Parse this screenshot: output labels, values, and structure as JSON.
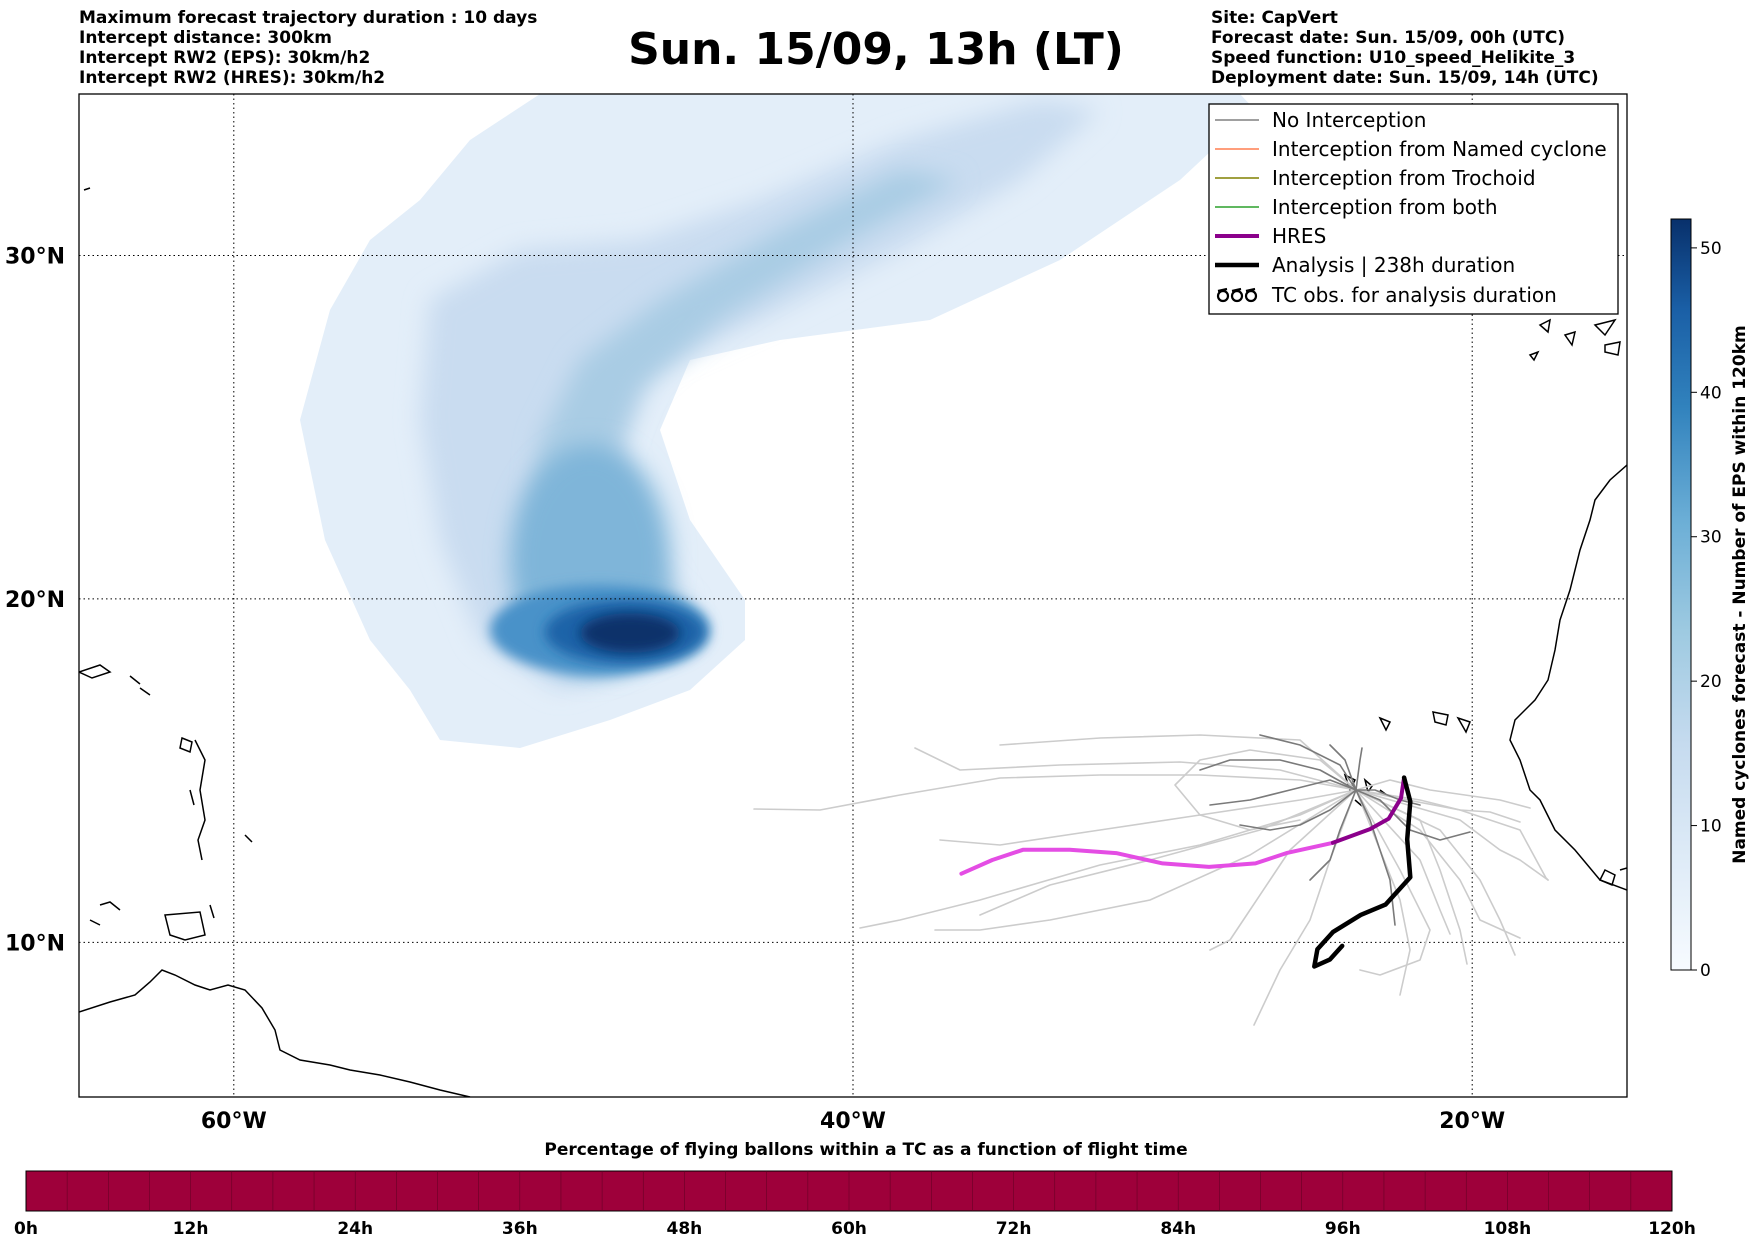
{
  "title": "Sun. 15/09, 13h (LT)",
  "info_left": [
    "Maximum forecast trajectory duration : 10 days",
    "Intercept distance: 300km",
    "Intercept RW2 (EPS):  30km/h2",
    "Intercept RW2 (HRES): 30km/h2"
  ],
  "info_right": [
    "Site: CapVert",
    "Forecast date: Sun. 15/09, 00h (UTC)",
    "Speed function: U10_speed_Helikite_3",
    "Deployment date: Sun. 15/09, 14h (UTC)"
  ],
  "map": {
    "lon_range": [
      -65,
      -15
    ],
    "lat_range": [
      5.5,
      34.7
    ],
    "lon_ticks": [
      {
        "value": -60,
        "label": "60°W"
      },
      {
        "value": -40,
        "label": "40°W"
      },
      {
        "value": -20,
        "label": "20°W"
      }
    ],
    "lat_ticks": [
      {
        "value": 10,
        "label": "10°N"
      },
      {
        "value": 20,
        "label": "20°N"
      },
      {
        "value": 30,
        "label": "30°N"
      }
    ],
    "grid": "dotted"
  },
  "legend": {
    "placement": "top-right",
    "entries": [
      {
        "label": "No Interception",
        "color": "#808080",
        "style": "thin"
      },
      {
        "label": "Interception from Named cyclone",
        "color": "#ff7f50",
        "style": "thin"
      },
      {
        "label": "Interception from Trochoid",
        "color": "#808000",
        "style": "thin"
      },
      {
        "label": "Interception from both",
        "color": "#2ca02c",
        "style": "thin"
      },
      {
        "label": "HRES",
        "color": "#8b008b",
        "style": "thick"
      },
      {
        "label": "Analysis | 238h duration",
        "color": "#000000",
        "style": "thick"
      },
      {
        "label": "TC obs. for analysis duration",
        "color": "#000000",
        "style": "tc-symbol"
      }
    ]
  },
  "colorbar": {
    "label": "Named cyclones forecast - Number of EPS within 120km",
    "min": 0,
    "max": 52,
    "ticks": [
      "0",
      "10",
      "20",
      "30",
      "40",
      "50"
    ],
    "colormap": "Blues"
  },
  "chart_data": {
    "type": "heatmap",
    "title": "Sun. 15/09, 13h (LT)",
    "density_cores": [
      {
        "lon": -46.5,
        "lat": 19.5,
        "value": 52
      },
      {
        "lon": -48.5,
        "lat": 22.0,
        "value": 30
      },
      {
        "lon": -43.0,
        "lat": 28.0,
        "value": 15
      },
      {
        "lon": -38.0,
        "lat": 32.0,
        "value": 10
      }
    ],
    "trajectories": {
      "hres": [
        [
          -36.5,
          12.0
        ],
        [
          -35.5,
          12.4
        ],
        [
          -34.5,
          12.7
        ],
        [
          -33.0,
          12.7
        ],
        [
          -31.5,
          12.6
        ],
        [
          -30.0,
          12.3
        ],
        [
          -28.5,
          12.2
        ],
        [
          -27.0,
          12.3
        ],
        [
          -26.0,
          12.6
        ],
        [
          -24.5,
          12.9
        ],
        [
          -23.3,
          13.3
        ],
        [
          -22.7,
          13.6
        ],
        [
          -22.3,
          14.2
        ],
        [
          -22.2,
          14.8
        ]
      ],
      "analysis": [
        [
          -22.2,
          14.8
        ],
        [
          -22.0,
          14.1
        ],
        [
          -22.1,
          13.0
        ],
        [
          -22.0,
          11.9
        ],
        [
          -22.3,
          11.6
        ],
        [
          -22.8,
          11.1
        ],
        [
          -23.6,
          10.8
        ],
        [
          -24.5,
          10.3
        ],
        [
          -25.0,
          9.8
        ],
        [
          -25.1,
          9.3
        ],
        [
          -24.6,
          9.5
        ],
        [
          -24.2,
          9.9
        ]
      ]
    }
  },
  "flight_time_bar": {
    "title": "Percentage of flying ballons within a TC as a function of flight time",
    "color": "#9e003a",
    "ticks": [
      "0h",
      "12h",
      "24h",
      "36h",
      "48h",
      "60h",
      "72h",
      "84h",
      "96h",
      "108h",
      "120h"
    ]
  }
}
